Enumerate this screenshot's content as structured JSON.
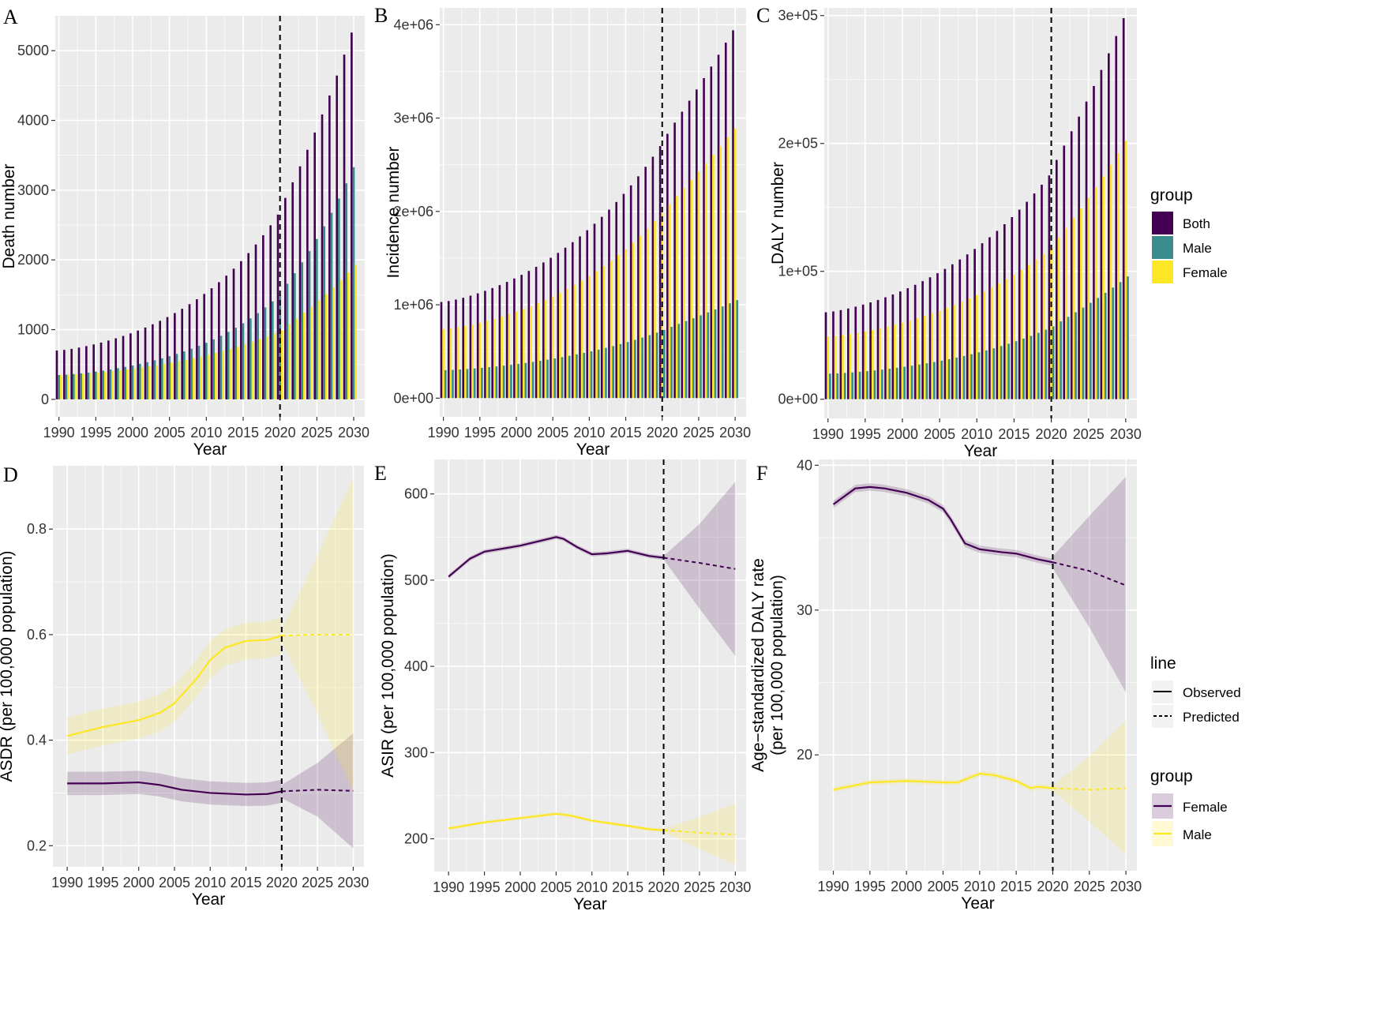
{
  "colors": {
    "both": "#440154",
    "male": "#3a8d8c",
    "female": "#fde725",
    "panel": "#ebebeb",
    "grid": "#ffffff",
    "dashed": "#000000"
  },
  "legends": {
    "bar": {
      "title": "group",
      "items": [
        {
          "label": "Both",
          "color": "#440154"
        },
        {
          "label": "Male",
          "color": "#3a8d8c"
        },
        {
          "label": "Female",
          "color": "#fde725"
        }
      ]
    },
    "line": {
      "title": "line",
      "items": [
        {
          "label": "Observed",
          "style": "solid"
        },
        {
          "label": "Predicted",
          "style": "dashed"
        }
      ]
    },
    "group": {
      "title": "group",
      "items": [
        {
          "label": "Female",
          "color": "#440154"
        },
        {
          "label": "Male",
          "color": "#fde725"
        }
      ]
    }
  },
  "chart_data": [
    {
      "panel": "A",
      "type": "bar",
      "xlabel": "Year",
      "ylabel": "Death number",
      "x_ticks": [
        1990,
        1995,
        2000,
        2005,
        2010,
        2015,
        2020,
        2025,
        2030
      ],
      "y_ticks": [
        0,
        1000,
        2000,
        3000,
        4000,
        5000
      ],
      "y_tick_labels": [
        "0",
        "1000",
        "2000",
        "3000",
        "4000",
        "5000"
      ],
      "xlim": [
        1989.5,
        2031.5
      ],
      "ylim": [
        -250,
        5500
      ],
      "cutoff": 2020,
      "start": 1990,
      "end": 2030,
      "series": [
        {
          "name": "Both",
          "from": [
            1990,
            700
          ],
          "mid": [
            2020,
            2650
          ],
          "to": [
            2030,
            5260
          ]
        },
        {
          "name": "Male",
          "from": [
            1990,
            350
          ],
          "mid": [
            2020,
            1500
          ],
          "to": [
            2030,
            3330
          ]
        },
        {
          "name": "Female",
          "from": [
            1990,
            350
          ],
          "mid": [
            2020,
            990
          ],
          "to": [
            2030,
            1930
          ]
        }
      ]
    },
    {
      "panel": "B",
      "type": "bar",
      "xlabel": "Year",
      "ylabel": "Incidence number",
      "x_ticks": [
        1990,
        1995,
        2000,
        2005,
        2010,
        2015,
        2020,
        2025,
        2030
      ],
      "y_ticks": [
        0,
        1000000,
        2000000,
        3000000,
        4000000
      ],
      "y_tick_labels": [
        "0e+00",
        "1e+06",
        "2e+06",
        "3e+06",
        "4e+06"
      ],
      "xlim": [
        1989.5,
        2031.5
      ],
      "ylim": [
        -200000,
        4180000
      ],
      "cutoff": 2020,
      "start": 1990,
      "end": 2030,
      "series": [
        {
          "name": "Both",
          "from": [
            1990,
            1030000
          ],
          "mid": [
            2020,
            2700000
          ],
          "to": [
            2030,
            3940000
          ]
        },
        {
          "name": "Female",
          "from": [
            1990,
            740000
          ],
          "mid": [
            2020,
            1980000
          ],
          "to": [
            2030,
            2890000
          ]
        },
        {
          "name": "Male",
          "from": [
            1990,
            300000
          ],
          "mid": [
            2020,
            730000
          ],
          "to": [
            2030,
            1050000
          ]
        }
      ]
    },
    {
      "panel": "C",
      "type": "bar",
      "xlabel": "Year",
      "ylabel": "DALY number",
      "x_ticks": [
        1990,
        1995,
        2000,
        2005,
        2010,
        2015,
        2020,
        2025,
        2030
      ],
      "y_ticks": [
        0,
        100000,
        200000,
        300000
      ],
      "y_tick_labels": [
        "0e+00",
        "1e+05",
        "2e+05",
        "3e+05"
      ],
      "xlim": [
        1989.5,
        2031.5
      ],
      "ylim": [
        -15000,
        306000
      ],
      "cutoff": 2020,
      "start": 1990,
      "end": 2030,
      "series": [
        {
          "name": "Both",
          "from": [
            1990,
            68000
          ],
          "mid": [
            2020,
            175000
          ],
          "to": [
            2030,
            298000
          ]
        },
        {
          "name": "Female",
          "from": [
            1990,
            49000
          ],
          "mid": [
            2020,
            118000
          ],
          "to": [
            2030,
            202000
          ]
        },
        {
          "name": "Male",
          "from": [
            1990,
            20000
          ],
          "mid": [
            2020,
            57000
          ],
          "to": [
            2030,
            96000
          ]
        }
      ]
    },
    {
      "panel": "D",
      "type": "line",
      "xlabel": "Year",
      "ylabel": "ASDR (per 100,000 population)",
      "x_ticks": [
        1990,
        1995,
        2000,
        2005,
        2010,
        2015,
        2020,
        2025,
        2030
      ],
      "y_ticks": [
        0.2,
        0.4,
        0.6,
        0.8
      ],
      "y_tick_labels": [
        "0.2",
        "0.4",
        "0.6",
        "0.8"
      ],
      "xlim": [
        1988,
        2031.5
      ],
      "ylim": [
        0.16,
        0.92
      ],
      "cutoff": 2020,
      "series": [
        {
          "name": "Female",
          "x": [
            1990,
            1995,
            2000,
            2003,
            2006,
            2010,
            2015,
            2018,
            2020
          ],
          "y": [
            0.318,
            0.318,
            0.32,
            0.315,
            0.306,
            0.3,
            0.297,
            0.298,
            0.303
          ],
          "band": 0.022,
          "pred": {
            "x": [
              2020,
              2025,
              2030
            ],
            "y": [
              0.303,
              0.306,
              0.304
            ],
            "lo": [
              0.29,
              0.255,
              0.195
            ],
            "hi": [
              0.315,
              0.357,
              0.413
            ]
          }
        },
        {
          "name": "Male",
          "x": [
            1990,
            1995,
            2000,
            2003,
            2005,
            2008,
            2010,
            2012,
            2015,
            2018,
            2020
          ],
          "y": [
            0.408,
            0.425,
            0.438,
            0.452,
            0.47,
            0.515,
            0.552,
            0.575,
            0.588,
            0.59,
            0.598
          ],
          "band": 0.035,
          "pred": {
            "x": [
              2020,
              2025,
              2030
            ],
            "y": [
              0.598,
              0.6,
              0.6
            ],
            "lo": [
              0.585,
              0.45,
              0.302
            ],
            "hi": [
              0.61,
              0.75,
              0.898
            ]
          }
        }
      ]
    },
    {
      "panel": "E",
      "type": "line",
      "xlabel": "Year",
      "ylabel": "ASIR (per 100,000 population)",
      "x_ticks": [
        1990,
        1995,
        2000,
        2005,
        2010,
        2015,
        2020,
        2025,
        2030
      ],
      "y_ticks": [
        200,
        300,
        400,
        500,
        600
      ],
      "y_tick_labels": [
        "200",
        "300",
        "400",
        "500",
        "600"
      ],
      "xlim": [
        1988,
        2031.5
      ],
      "ylim": [
        162,
        640
      ],
      "cutoff": 2020,
      "series": [
        {
          "name": "Female",
          "x": [
            1990,
            1993,
            1995,
            2000,
            2003,
            2005,
            2006,
            2008,
            2010,
            2012,
            2015,
            2018,
            2020
          ],
          "y": [
            504,
            525,
            533,
            540,
            546,
            550,
            548,
            538,
            530,
            531,
            534,
            528,
            526
          ],
          "band": 2.5,
          "pred": {
            "x": [
              2020,
              2025,
              2030
            ],
            "y": [
              526,
              520,
              513
            ],
            "lo": [
              524,
              467,
              412
            ],
            "hi": [
              528,
              565,
              614
            ]
          }
        },
        {
          "name": "Male",
          "x": [
            1990,
            1995,
            2000,
            2005,
            2007,
            2010,
            2015,
            2018,
            2020
          ],
          "y": [
            212,
            219,
            224,
            229,
            227,
            221,
            215,
            211,
            210
          ],
          "band": 2,
          "pred": {
            "x": [
              2020,
              2025,
              2030
            ],
            "y": [
              210,
              207,
              205
            ],
            "lo": [
              208,
              188,
              170
            ],
            "hi": [
              212,
              225,
              241
            ]
          }
        }
      ]
    },
    {
      "panel": "F",
      "type": "line",
      "xlabel": "Year",
      "ylabel": "Age−standardized DALY rate (per 100,000 population)",
      "ylabel_lines": [
        "Age−standardized DALY rate",
        "(per 100,000 population)"
      ],
      "x_ticks": [
        1990,
        1995,
        2000,
        2005,
        2010,
        2015,
        2020,
        2025,
        2030
      ],
      "y_ticks": [
        20,
        30,
        40
      ],
      "y_tick_labels": [
        "20",
        "30",
        "40"
      ],
      "xlim": [
        1988,
        2031.5
      ],
      "ylim": [
        12,
        40.4
      ],
      "cutoff": 2020,
      "series": [
        {
          "name": "Female",
          "x": [
            1990,
            1993,
            1995,
            1997,
            2000,
            2003,
            2005,
            2006,
            2008,
            2010,
            2013,
            2015,
            2018,
            2020
          ],
          "y": [
            37.3,
            38.4,
            38.5,
            38.4,
            38.1,
            37.6,
            37.0,
            36.3,
            34.6,
            34.2,
            34.0,
            33.9,
            33.5,
            33.3
          ],
          "band": 0.25,
          "pred": {
            "x": [
              2020,
              2025,
              2030
            ],
            "y": [
              33.3,
              32.7,
              31.7
            ],
            "lo": [
              32.9,
              28.8,
              24.3
            ],
            "hi": [
              33.7,
              36.5,
              39.2
            ]
          }
        },
        {
          "name": "Male",
          "x": [
            1990,
            1995,
            2000,
            2005,
            2007,
            2008,
            2010,
            2012,
            2015,
            2017,
            2018,
            2020
          ],
          "y": [
            17.6,
            18.1,
            18.2,
            18.1,
            18.1,
            18.3,
            18.7,
            18.6,
            18.2,
            17.7,
            17.8,
            17.7
          ],
          "band": 0.18,
          "pred": {
            "x": [
              2020,
              2025,
              2030
            ],
            "y": [
              17.7,
              17.6,
              17.7
            ],
            "lo": [
              17.5,
              15.4,
              13.1
            ],
            "hi": [
              17.9,
              19.9,
              22.4
            ]
          }
        }
      ]
    }
  ]
}
